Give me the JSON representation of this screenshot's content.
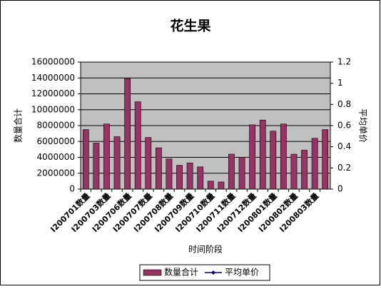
{
  "chart_data": {
    "type": "bar",
    "title": "花生果",
    "x_label": "时间阶段",
    "y_label": "数量合计",
    "y2_label": "平均单价",
    "categories": [
      "I200701数量",
      null,
      "I200703数量",
      null,
      "I200706数量",
      null,
      "I200707数量",
      null,
      "I200708数量",
      null,
      "I200709数量",
      null,
      "I200710数量",
      null,
      "I200711数量",
      null,
      "I200712数量",
      null,
      "I200801数量",
      null,
      "I200802数量",
      null,
      "I200803数量",
      null
    ],
    "series": [
      {
        "name": "数量合计",
        "color": "#993366",
        "values": [
          7500000,
          5800000,
          8200000,
          6600000,
          13900000,
          11000000,
          6500000,
          5200000,
          3800000,
          3000000,
          3300000,
          2800000,
          1000000,
          900000,
          4400000,
          4000000,
          8100000,
          8700000,
          7300000,
          8200000,
          4400000,
          4900000,
          6400000,
          7500000
        ]
      },
      {
        "name": "平均单价",
        "color": "#000080",
        "axis": "y2",
        "type": "line",
        "values": [
          null,
          null,
          null,
          null,
          null,
          null,
          null,
          null,
          null,
          null,
          null,
          null,
          null,
          null,
          null,
          null,
          null,
          null,
          null,
          null,
          null,
          null,
          null,
          null
        ]
      }
    ],
    "ylim": [
      0,
      16000000
    ],
    "yticks": [
      0,
      2000000,
      4000000,
      6000000,
      8000000,
      10000000,
      12000000,
      14000000,
      16000000
    ],
    "y2lim": [
      0,
      1.2
    ],
    "y2ticks": [
      0,
      0.2,
      0.4,
      0.6,
      0.8,
      1,
      1.2
    ],
    "grid": true,
    "legend": "bottom"
  }
}
